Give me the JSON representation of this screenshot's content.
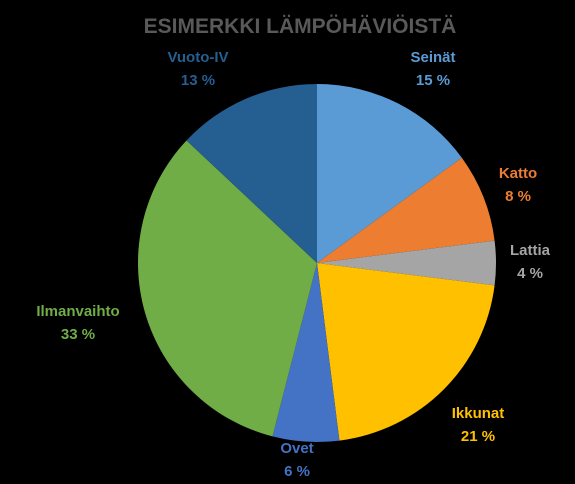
{
  "chart_data": {
    "type": "pie",
    "title": "ESIMERKKI LÄMPÖHÄVIÖISTÄ",
    "slices": [
      {
        "name": "Seinät",
        "value": 15,
        "value_label": "15 %",
        "color": "#5B9BD5"
      },
      {
        "name": "Katto",
        "value": 8,
        "value_label": "8 %",
        "color": "#ED7D31"
      },
      {
        "name": "Lattia",
        "value": 4,
        "value_label": "4 %",
        "color": "#A5A5A5"
      },
      {
        "name": "Ikkunat",
        "value": 21,
        "value_label": "21 %",
        "color": "#FFC000"
      },
      {
        "name": "Ovet",
        "value": 6,
        "value_label": "6 %",
        "color": "#4472C4"
      },
      {
        "name": "Ilmanvaihto",
        "value": 33,
        "value_label": "33 %",
        "color": "#70AD47"
      },
      {
        "name": "Vuoto-IV",
        "value": 13,
        "value_label": "13 %",
        "color": "#255E91"
      }
    ]
  },
  "colors": {
    "background": "#000000",
    "title": "#595959"
  }
}
